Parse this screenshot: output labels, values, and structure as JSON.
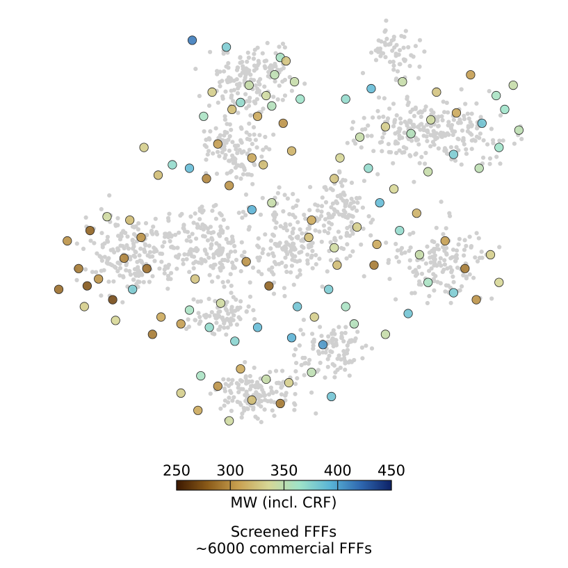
{
  "chart_data": {
    "type": "scatter",
    "title": "",
    "xlabel": "",
    "ylabel": "",
    "axes_visible": false,
    "grid": false,
    "background_series": {
      "name": "~6000 commercial FFFs",
      "color": "#d0d0d0",
      "approx_count": 6000
    },
    "colored_series": {
      "name": "Screened FFFs",
      "color_variable": "MW (incl. CRF)",
      "colormap_stops": [
        "#3b1800",
        "#8a5a18",
        "#c8a050",
        "#d6d796",
        "#9fe3c8",
        "#5ab5d6",
        "#2f68b0",
        "#0d2166"
      ],
      "points_x_mw": [
        [
          -3.2,
          4.6,
          415
        ],
        [
          -2.0,
          4.4,
          380
        ],
        [
          -0.1,
          4.1,
          360
        ],
        [
          0.1,
          4.0,
          325
        ],
        [
          -0.3,
          3.6,
          350
        ],
        [
          -1.2,
          3.3,
          345
        ],
        [
          -0.6,
          3.0,
          340
        ],
        [
          0.4,
          3.4,
          345
        ],
        [
          -2.5,
          3.1,
          330
        ],
        [
          -1.8,
          2.6,
          320
        ],
        [
          -0.9,
          2.4,
          310
        ],
        [
          0.0,
          2.2,
          300
        ],
        [
          -2.8,
          2.4,
          360
        ],
        [
          -1.5,
          2.8,
          370
        ],
        [
          -0.4,
          2.7,
          355
        ],
        [
          0.6,
          2.9,
          365
        ],
        [
          -3.9,
          1.0,
          370
        ],
        [
          -3.3,
          0.9,
          390
        ],
        [
          -4.4,
          0.7,
          320
        ],
        [
          -4.9,
          1.5,
          330
        ],
        [
          -2.3,
          1.6,
          305
        ],
        [
          -1.1,
          1.2,
          310
        ],
        [
          -2.7,
          0.6,
          295
        ],
        [
          -1.9,
          0.4,
          300
        ],
        [
          -0.7,
          1.0,
          320
        ],
        [
          0.3,
          1.4,
          315
        ],
        [
          -5.4,
          -0.6,
          320
        ],
        [
          -5.0,
          -1.1,
          300
        ],
        [
          -6.2,
          -0.5,
          340
        ],
        [
          -6.8,
          -0.9,
          280
        ],
        [
          -5.6,
          -1.7,
          295
        ],
        [
          -4.8,
          -2.0,
          285
        ],
        [
          -6.5,
          -2.3,
          300
        ],
        [
          -7.2,
          -2.0,
          290
        ],
        [
          -6.0,
          -2.9,
          270
        ],
        [
          -6.9,
          -2.5,
          275
        ],
        [
          -7.6,
          -1.2,
          300
        ],
        [
          -7.9,
          -2.6,
          285
        ],
        [
          -7.0,
          -3.1,
          330
        ],
        [
          -5.3,
          -2.6,
          380
        ],
        [
          -5.9,
          -3.5,
          335
        ],
        [
          -4.3,
          -3.4,
          310
        ],
        [
          -3.6,
          -3.6,
          305
        ],
        [
          -4.6,
          -3.9,
          290
        ],
        [
          -3.1,
          -2.3,
          325
        ],
        [
          -2.2,
          -3.0,
          340
        ],
        [
          -1.3,
          -1.8,
          300
        ],
        [
          -0.5,
          -2.5,
          280
        ],
        [
          -3.3,
          -3.2,
          360
        ],
        [
          -2.6,
          -3.7,
          370
        ],
        [
          -1.7,
          -4.1,
          375
        ],
        [
          -0.9,
          -3.7,
          390
        ],
        [
          0.3,
          -4.0,
          395
        ],
        [
          1.1,
          -3.4,
          330
        ],
        [
          1.6,
          -2.6,
          380
        ],
        [
          2.2,
          -3.1,
          360
        ],
        [
          0.9,
          -1.1,
          320
        ],
        [
          1.8,
          -1.4,
          340
        ],
        [
          2.6,
          -0.8,
          330
        ],
        [
          3.2,
          -1.9,
          290
        ],
        [
          0.5,
          -3.1,
          385
        ],
        [
          -1.1,
          -0.3,
          395
        ],
        [
          -0.4,
          -0.1,
          345
        ],
        [
          1.0,
          -0.6,
          310
        ],
        [
          1.8,
          0.6,
          325
        ],
        [
          3.0,
          0.9,
          370
        ],
        [
          3.9,
          0.3,
          335
        ],
        [
          4.7,
          -0.4,
          315
        ],
        [
          5.1,
          0.8,
          345
        ],
        [
          6.0,
          1.3,
          380
        ],
        [
          6.9,
          0.9,
          350
        ],
        [
          7.6,
          1.5,
          365
        ],
        [
          2.7,
          1.8,
          345
        ],
        [
          3.6,
          2.1,
          330
        ],
        [
          4.5,
          1.9,
          355
        ],
        [
          5.2,
          2.3,
          340
        ],
        [
          6.1,
          2.5,
          310
        ],
        [
          7.0,
          2.2,
          385
        ],
        [
          7.8,
          2.6,
          365
        ],
        [
          8.3,
          2.0,
          350
        ],
        [
          2.2,
          2.9,
          370
        ],
        [
          3.1,
          3.2,
          390
        ],
        [
          4.2,
          3.4,
          345
        ],
        [
          5.4,
          3.1,
          325
        ],
        [
          6.6,
          3.6,
          305
        ],
        [
          7.5,
          3.0,
          360
        ],
        [
          8.1,
          3.3,
          345
        ],
        [
          2.0,
          1.2,
          335
        ],
        [
          1.9,
          -1.9,
          320
        ],
        [
          3.3,
          -1.3,
          310
        ],
        [
          4.1,
          -0.9,
          370
        ],
        [
          3.4,
          -0.1,
          390
        ],
        [
          4.8,
          -1.6,
          345
        ],
        [
          5.7,
          -1.2,
          305
        ],
        [
          6.4,
          -2.0,
          290
        ],
        [
          7.3,
          -1.6,
          330
        ],
        [
          5.1,
          -2.4,
          360
        ],
        [
          6.0,
          -2.7,
          380
        ],
        [
          6.8,
          -2.9,
          300
        ],
        [
          7.6,
          -2.4,
          335
        ],
        [
          2.5,
          -3.6,
          355
        ],
        [
          3.6,
          -3.9,
          345
        ],
        [
          4.4,
          -3.3,
          385
        ],
        [
          1.4,
          -4.2,
          405
        ],
        [
          -1.5,
          -4.9,
          310
        ],
        [
          -0.6,
          -5.2,
          345
        ],
        [
          0.2,
          -5.3,
          330
        ],
        [
          1.0,
          -5.0,
          350
        ],
        [
          -2.3,
          -5.4,
          300
        ],
        [
          -1.1,
          -5.8,
          320
        ],
        [
          -0.1,
          -5.9,
          290
        ],
        [
          1.7,
          -5.7,
          385
        ],
        [
          -2.9,
          -5.1,
          360
        ],
        [
          -3.6,
          -5.6,
          330
        ],
        [
          -3.0,
          -6.1,
          310
        ],
        [
          -1.9,
          -6.4,
          340
        ]
      ]
    },
    "colorbar": {
      "label": "MW (incl. CRF)",
      "range": [
        250,
        450
      ],
      "ticks": [
        250,
        300,
        350,
        400,
        450
      ],
      "tick_labels": [
        "250",
        "300",
        "350",
        "400",
        "450"
      ],
      "orientation": "horizontal",
      "placement": "bottom-center"
    },
    "legend": {
      "placement": "bottom-center",
      "entries": [
        "Screened FFFs",
        "~6000 commercial FFFs"
      ]
    },
    "x_range": [
      -8.5,
      9.0
    ],
    "y_range": [
      -7.5,
      5.2
    ]
  }
}
